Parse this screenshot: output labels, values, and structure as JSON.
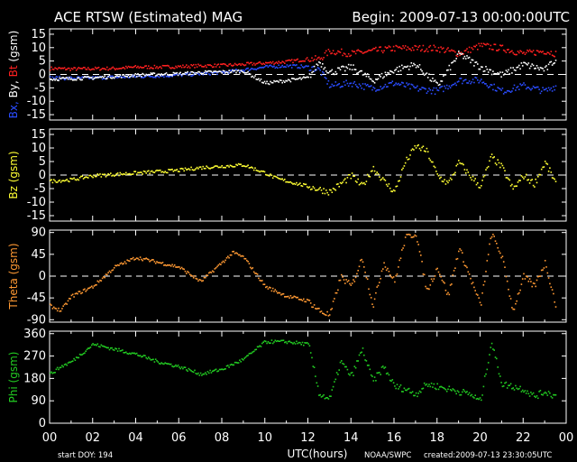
{
  "header": {
    "title": "ACE RTSW (Estimated) MAG",
    "begin": "Begin: 2009-07-13 00:00:00UTC"
  },
  "footer": {
    "start_doy": "start DOY: 194",
    "xlabel": "UTC(hours)",
    "source": "NOAA/SWPC",
    "created": "created:2009-07-13 23:30:05UTC"
  },
  "colors": {
    "background": "#000000",
    "axes": "#ffffff",
    "bt": "#ff2020",
    "bx": "#2a4cff",
    "by": "#ffffff",
    "bz": "#ffff33",
    "theta": "#ff9933",
    "phi": "#22cc22"
  },
  "chart_data": [
    {
      "type": "scatter",
      "ylabel_parts": [
        {
          "text": "Bx, ",
          "color": "#2a4cff"
        },
        {
          "text": "By, ",
          "color": "#ffffff"
        },
        {
          "text": "Bt",
          "color": "#ff2020"
        },
        {
          "text": " (gsm)",
          "color": "#ffffff"
        }
      ],
      "ylim": [
        -17,
        17
      ],
      "yticks": [
        -15,
        -10,
        -5,
        0,
        5,
        10,
        15
      ],
      "xlim": [
        0,
        24
      ],
      "zero_line": true,
      "series": [
        {
          "key": "bt",
          "color": "#ff2020",
          "x": [
            0,
            1,
            2,
            3,
            4,
            5,
            6,
            7,
            8,
            9,
            10,
            11,
            12,
            12.5,
            13,
            14,
            15,
            16,
            17,
            18,
            19,
            20,
            21,
            22,
            23,
            23.5
          ],
          "y": [
            2.5,
            2.3,
            2.4,
            2.5,
            3,
            3,
            3.2,
            3.5,
            3.6,
            4,
            4.5,
            5,
            6,
            6,
            9,
            8,
            9,
            10,
            10,
            10,
            8,
            11,
            10,
            8,
            9,
            8
          ]
        },
        {
          "key": "bx",
          "color": "#2a4cff",
          "x": [
            0,
            1,
            2,
            3,
            4,
            5,
            6,
            7,
            8,
            9,
            10,
            11,
            12,
            12.5,
            13,
            14,
            15,
            16,
            17,
            18,
            19,
            20,
            21,
            22,
            23,
            23.5
          ],
          "y": [
            -1,
            -1.2,
            -1,
            -0.8,
            -0.5,
            -0.3,
            0,
            0.5,
            1,
            2,
            3,
            3.5,
            3,
            2,
            -4,
            -3,
            -5,
            -3,
            -5,
            -6,
            -2,
            -2,
            -6,
            -4,
            -6,
            -4
          ]
        },
        {
          "key": "by",
          "color": "#ffffff",
          "x": [
            0,
            1,
            2,
            3,
            4,
            5,
            6,
            7,
            8,
            9,
            10,
            11,
            12,
            12.5,
            13,
            14,
            15,
            16,
            17,
            18,
            19,
            20,
            21,
            22,
            23,
            23.5
          ],
          "y": [
            -1.5,
            -1.3,
            -1,
            -0.5,
            0,
            0.3,
            0.5,
            1,
            1.2,
            1.5,
            -3,
            -2,
            -1,
            5,
            1,
            3,
            -2,
            2,
            4,
            -4,
            8,
            3,
            0,
            4,
            2,
            6
          ]
        }
      ]
    },
    {
      "type": "scatter",
      "ylabel": "Bz (gsm)",
      "ylabel_color": "#ffff33",
      "ylim": [
        -17,
        17
      ],
      "yticks": [
        -15,
        -10,
        -5,
        0,
        5,
        10,
        15
      ],
      "xlim": [
        0,
        24
      ],
      "zero_line": true,
      "series": [
        {
          "key": "bz",
          "color": "#ffff33",
          "x": [
            0,
            1,
            2,
            3,
            4,
            5,
            6,
            7,
            8,
            9,
            10,
            10.5,
            11,
            12,
            12.5,
            13,
            13.5,
            14,
            14.5,
            15,
            15.5,
            16,
            16.5,
            17,
            17.5,
            18,
            18.5,
            19,
            19.5,
            20,
            20.5,
            21,
            21.5,
            22,
            22.5,
            23,
            23.5
          ],
          "y": [
            -2,
            -1.5,
            0,
            0.5,
            1,
            1.5,
            2,
            3,
            3.5,
            4,
            1,
            -1,
            -2,
            -4,
            -5,
            -6,
            -3,
            0,
            -4,
            3,
            -2,
            -6,
            5,
            11,
            9,
            0,
            -3,
            5,
            0,
            -4,
            7,
            3,
            -5,
            0,
            -3,
            5,
            -3
          ]
        }
      ]
    },
    {
      "type": "scatter",
      "ylabel": "Theta (gsm)",
      "ylabel_color": "#ff9933",
      "ylim": [
        -95,
        95
      ],
      "yticks": [
        -90,
        -45,
        0,
        45,
        90
      ],
      "xlim": [
        0,
        24
      ],
      "zero_line": true,
      "series": [
        {
          "key": "theta",
          "color": "#ff9933",
          "x": [
            0,
            0.5,
            1,
            2,
            3,
            4,
            5,
            6,
            7,
            8,
            8.5,
            9,
            10,
            10.5,
            11,
            12,
            12.5,
            13,
            13.5,
            14,
            14.5,
            15,
            15.5,
            16,
            16.5,
            17,
            17.5,
            18,
            18.5,
            19,
            19.5,
            20,
            20.5,
            21,
            21.5,
            22,
            22.5,
            23,
            23.5
          ],
          "y": [
            -60,
            -70,
            -40,
            -20,
            20,
            40,
            30,
            20,
            -10,
            30,
            50,
            40,
            -20,
            -30,
            -40,
            -50,
            -70,
            -80,
            0,
            -20,
            40,
            -60,
            30,
            -10,
            80,
            90,
            -30,
            20,
            -40,
            60,
            0,
            -60,
            90,
            40,
            -70,
            0,
            -20,
            30,
            -60
          ]
        }
      ]
    },
    {
      "type": "scatter",
      "ylabel": "Phi (gsm)",
      "ylabel_color": "#22cc22",
      "ylim": [
        0,
        370
      ],
      "yticks": [
        0,
        90,
        180,
        270,
        360
      ],
      "xlim": [
        0,
        24
      ],
      "zero_line": false,
      "xticks": [
        "00",
        "02",
        "04",
        "06",
        "08",
        "10",
        "12",
        "14",
        "16",
        "18",
        "20",
        "22",
        "00"
      ],
      "series": [
        {
          "key": "phi",
          "color": "#22cc22",
          "x": [
            0,
            0.5,
            1,
            2,
            3,
            4,
            5,
            6,
            7,
            8,
            9,
            10,
            11,
            12,
            12.5,
            13,
            13.5,
            14,
            14.5,
            15,
            15.5,
            16,
            16.5,
            17,
            17.5,
            18,
            18.5,
            19,
            19.5,
            20,
            20.5,
            21,
            21.5,
            22,
            22.5,
            23,
            23.5
          ],
          "y": [
            200,
            230,
            250,
            320,
            300,
            280,
            250,
            230,
            200,
            220,
            260,
            330,
            330,
            320,
            120,
            100,
            250,
            190,
            300,
            170,
            230,
            150,
            140,
            120,
            160,
            150,
            140,
            130,
            120,
            90,
            330,
            160,
            150,
            140,
            110,
            130,
            110
          ]
        }
      ]
    }
  ]
}
